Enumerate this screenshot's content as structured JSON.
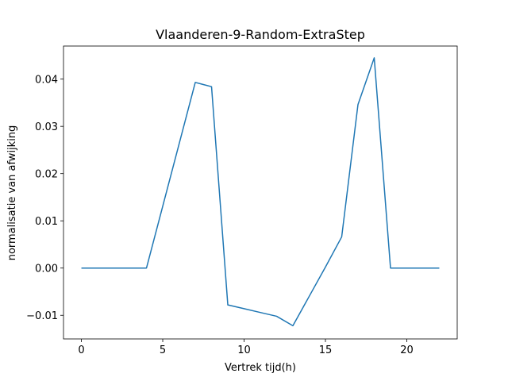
{
  "chart_data": {
    "type": "line",
    "title": "Vlaanderen-9-Random-ExtraStep",
    "xlabel": "Vertrek tijd(h)",
    "ylabel": "normalisatie van afwijking",
    "xlim": [
      -1.1,
      23.1
    ],
    "ylim": [
      -0.015,
      0.047
    ],
    "x_ticks": [
      0,
      5,
      10,
      15,
      20
    ],
    "x_tick_labels": [
      "0",
      "5",
      "10",
      "15",
      "20"
    ],
    "y_ticks": [
      -0.01,
      0.0,
      0.01,
      0.02,
      0.03,
      0.04
    ],
    "y_tick_labels": [
      "−0.01",
      "0.00",
      "0.01",
      "0.02",
      "0.03",
      "0.04"
    ],
    "grid": false,
    "series": [
      {
        "color": "#1f77b4",
        "x": [
          0,
          1,
          2,
          3,
          4,
          5,
          6,
          7,
          8,
          9,
          10,
          11,
          12,
          13,
          14,
          15,
          16,
          17,
          18,
          19,
          20,
          21,
          22
        ],
        "y": [
          0.0,
          0.0,
          0.0,
          0.0,
          0.0,
          0.0131,
          0.0262,
          0.0393,
          0.0384,
          -0.0078,
          -0.0086,
          -0.0094,
          -0.0102,
          -0.0122,
          -0.006,
          0.0002,
          0.0066,
          0.0346,
          0.0445,
          0.0,
          0.0,
          0.0,
          0.0
        ]
      }
    ]
  }
}
